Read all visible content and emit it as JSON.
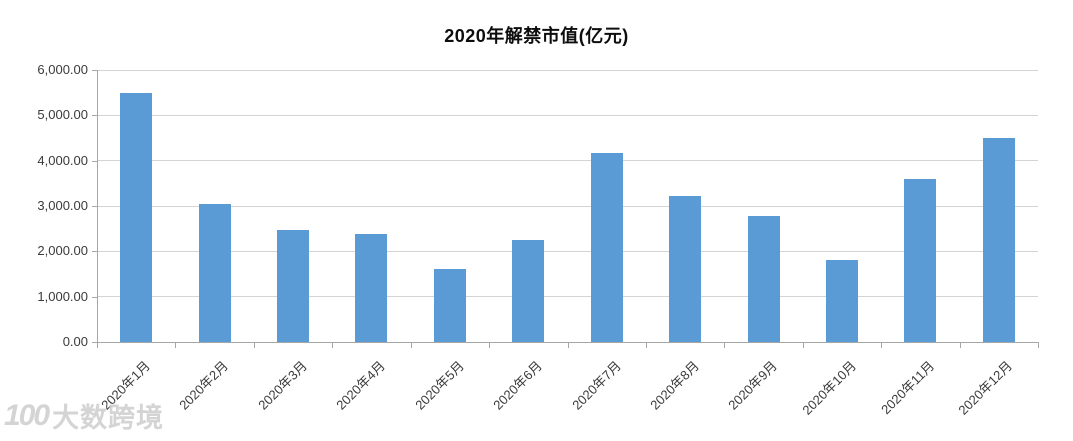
{
  "chart_data": {
    "type": "bar",
    "title": "2020年解禁市值(亿元)",
    "categories": [
      "2020年1月",
      "2020年2月",
      "2020年3月",
      "2020年4月",
      "2020年5月",
      "2020年6月",
      "2020年7月",
      "2020年8月",
      "2020年9月",
      "2020年10月",
      "2020年11月",
      "2020年12月"
    ],
    "values": [
      5500,
      3050,
      2480,
      2390,
      1600,
      2260,
      4180,
      3230,
      2790,
      1800,
      3600,
      4500
    ],
    "xlabel": "",
    "ylabel": "",
    "ylim": [
      0,
      6000
    ],
    "yticks": [
      0,
      1000,
      2000,
      3000,
      4000,
      5000,
      6000
    ],
    "ytick_labels": [
      "0.00",
      "1,000.00",
      "2,000.00",
      "3,000.00",
      "4,000.00",
      "5,000.00",
      "6,000.00"
    ],
    "grid": true,
    "legend": false,
    "bar_color": "#5b9bd5",
    "gridline_color": "#d4d4d4",
    "axis_color": "#a6a6a6",
    "label_color": "#3a3a3a"
  },
  "watermark": {
    "logo": "100",
    "text": "大数跨境"
  }
}
